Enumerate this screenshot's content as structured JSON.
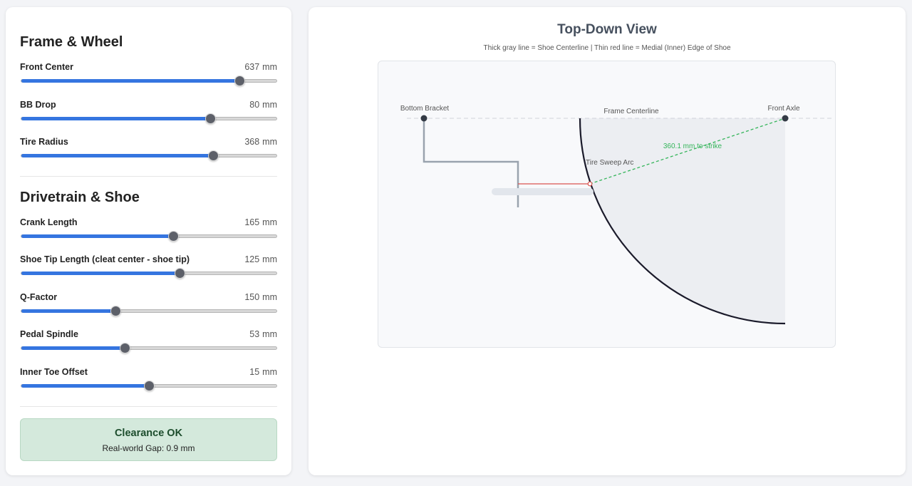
{
  "controls": {
    "frame_section_title": "Frame & Wheel",
    "drivetrain_section_title": "Drivetrain & Shoe",
    "unit": "mm",
    "sliders": [
      {
        "id": "front-center",
        "label": "Front Center",
        "value": "637",
        "fraction": 0.855
      },
      {
        "id": "bb-drop",
        "label": "BB Drop",
        "value": "80",
        "fraction": 0.74
      },
      {
        "id": "tire-radius",
        "label": "Tire Radius",
        "value": "368",
        "fraction": 0.75
      },
      {
        "id": "crank-length",
        "label": "Crank Length",
        "value": "165",
        "fraction": 0.595
      },
      {
        "id": "shoe-tip-length",
        "label": "Shoe Tip Length (cleat center - shoe tip)",
        "value": "125",
        "fraction": 0.62
      },
      {
        "id": "q-factor",
        "label": "Q-Factor",
        "value": "150",
        "fraction": 0.37
      },
      {
        "id": "pedal-spindle",
        "label": "Pedal Spindle",
        "value": "53",
        "fraction": 0.405
      },
      {
        "id": "inner-toe-offset",
        "label": "Inner Toe Offset",
        "value": "15",
        "fraction": 0.5
      }
    ]
  },
  "status": {
    "title": "Clearance OK",
    "subtitle": "Real-world Gap: 0.9 mm",
    "bg_color": "#d4e9dc",
    "text_color": "#1d4d2d"
  },
  "view": {
    "title": "Top-Down View",
    "subtitle": "Thick gray line = Shoe Centerline | Thin red line = Medial (Inner) Edge of Shoe",
    "labels": {
      "bottom_bracket": "Bottom Bracket",
      "frame_centerline": "Frame Centerline",
      "front_axle": "Front Axle",
      "tire_sweep_arc": "Tire Sweep Arc",
      "strike_distance": "360.1 mm to strike"
    },
    "colors": {
      "shoe_centerline": "#9aa3ae",
      "medial_edge": "#d9534f",
      "strike_line": "#34b55a",
      "tire_arc": "#1a1a2a",
      "sweep_fill": "#eceef2"
    }
  }
}
